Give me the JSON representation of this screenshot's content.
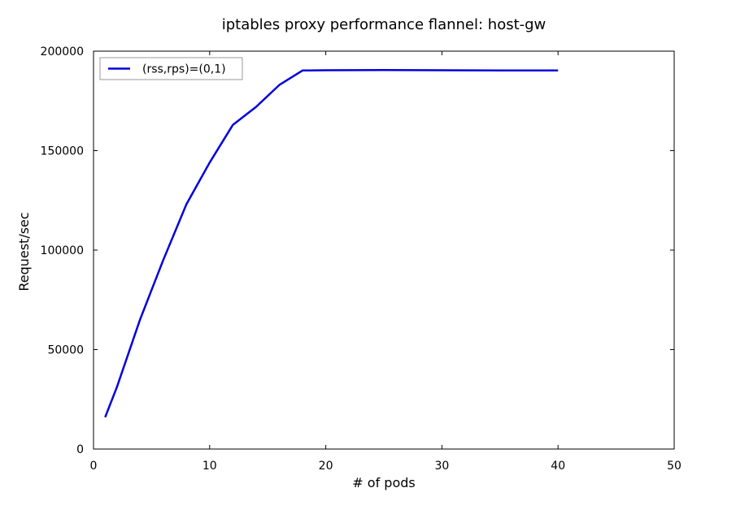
{
  "chart_data": {
    "type": "line",
    "title": "iptables proxy performance flannel: host-gw",
    "xlabel": "# of pods",
    "ylabel": "Request/sec",
    "xlim": [
      0,
      50
    ],
    "ylim": [
      0,
      200000
    ],
    "xticks": [
      0,
      10,
      20,
      30,
      40,
      50
    ],
    "yticks": [
      0,
      50000,
      100000,
      150000,
      200000
    ],
    "grid": false,
    "legend_position": "top-left",
    "series": [
      {
        "name": "(rss,rps)=(0,1)",
        "color": "#0000dd",
        "x": [
          1,
          2,
          4,
          6,
          8,
          10,
          12,
          14,
          16,
          18,
          20,
          25,
          30,
          35,
          40
        ],
        "y": [
          16000,
          31000,
          65000,
          95000,
          123000,
          144000,
          163000,
          172000,
          183000,
          190300,
          190400,
          190500,
          190400,
          190300,
          190300
        ]
      }
    ]
  }
}
